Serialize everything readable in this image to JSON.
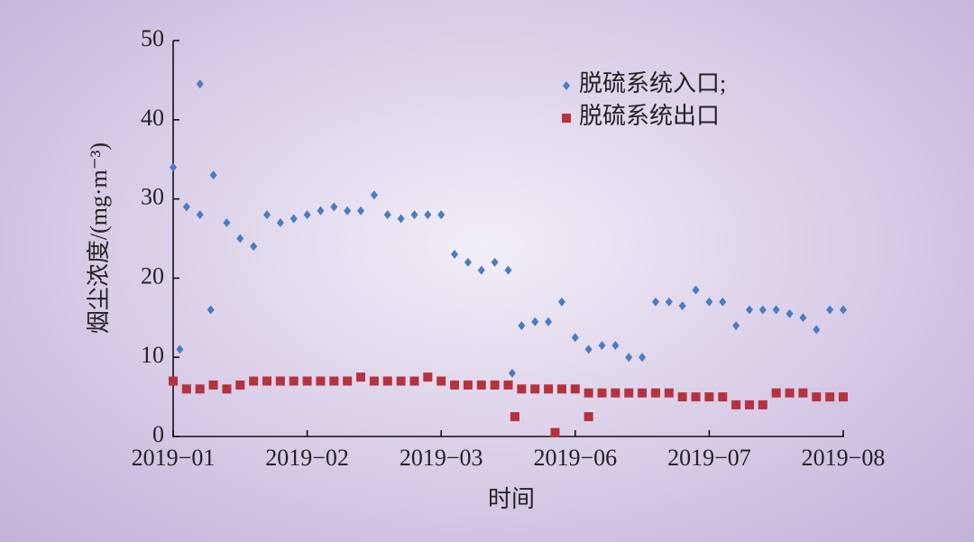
{
  "chart_data": {
    "type": "scatter",
    "xlabel": "时间",
    "ylabel": "烟尘浓度/(mg·m⁻³)",
    "xlim": [
      0,
      5
    ],
    "xticks": [
      {
        "value": 0,
        "label": "2019−01"
      },
      {
        "value": 1,
        "label": "2019−02"
      },
      {
        "value": 2,
        "label": "2019−03"
      },
      {
        "value": 3,
        "label": "2019−06"
      },
      {
        "value": 4,
        "label": "2019−07"
      },
      {
        "value": 5,
        "label": "2019−08"
      }
    ],
    "ylim": [
      0,
      50
    ],
    "yticks": [
      0,
      10,
      20,
      30,
      40,
      50
    ],
    "grid": false,
    "legend": "upper right",
    "series": [
      {
        "name": "脱硫系统入口;",
        "color": "#4a7cc2",
        "marker": "diamond",
        "x": [
          0,
          0.1,
          0.2,
          0.3,
          0.4,
          0.5,
          0.6,
          0.7,
          0.8,
          0.9,
          1.0,
          1.1,
          1.2,
          1.3,
          1.4,
          1.5,
          1.6,
          1.7,
          1.8,
          1.9,
          2.0,
          2.1,
          2.2,
          2.3,
          2.4,
          2.5,
          2.6,
          2.7,
          2.8,
          2.9,
          3.0,
          3.1,
          3.2,
          3.3,
          3.4,
          3.5,
          3.6,
          3.7,
          3.8,
          3.9,
          4.0,
          4.1,
          4.2,
          4.3,
          4.4,
          4.5,
          4.6,
          4.7,
          4.8,
          4.9,
          5.0,
          0.2,
          0.28,
          0.05,
          2.53
        ],
        "values": [
          34,
          29,
          28,
          33,
          27,
          25,
          24,
          28,
          27,
          27.5,
          28,
          28.5,
          29,
          28.5,
          28.5,
          30.5,
          28,
          27.5,
          28,
          28,
          28,
          23,
          22,
          21,
          22,
          21,
          14,
          14.5,
          14.5,
          17,
          12.5,
          11,
          11.5,
          11.5,
          10,
          10,
          17,
          17,
          16.5,
          18.5,
          17,
          17,
          14,
          16,
          16,
          16,
          15.5,
          15,
          13.5,
          16,
          16,
          44.5,
          16,
          11,
          8
        ]
      },
      {
        "name": "脱硫系统出口",
        "color": "#b5323f",
        "marker": "square",
        "x": [
          0,
          0.1,
          0.2,
          0.3,
          0.4,
          0.5,
          0.6,
          0.7,
          0.8,
          0.9,
          1.0,
          1.1,
          1.2,
          1.3,
          1.4,
          1.5,
          1.6,
          1.7,
          1.8,
          1.9,
          2.0,
          2.1,
          2.2,
          2.3,
          2.4,
          2.5,
          2.6,
          2.7,
          2.8,
          2.9,
          3.0,
          3.1,
          3.2,
          3.3,
          3.4,
          3.5,
          3.6,
          3.7,
          3.8,
          3.9,
          4.0,
          4.1,
          4.2,
          4.3,
          4.4,
          4.5,
          4.6,
          4.7,
          4.8,
          4.9,
          5.0,
          2.55,
          2.85,
          3.1
        ],
        "values": [
          7,
          6,
          6,
          6.5,
          6,
          6.5,
          7,
          7,
          7,
          7,
          7,
          7,
          7,
          7,
          7.5,
          7,
          7,
          7,
          7,
          7.5,
          7,
          6.5,
          6.5,
          6.5,
          6.5,
          6.5,
          6,
          6,
          6,
          6,
          6,
          5.5,
          5.5,
          5.5,
          5.5,
          5.5,
          5.5,
          5.5,
          5,
          5,
          5,
          5,
          4,
          4,
          4,
          5.5,
          5.5,
          5.5,
          5,
          5,
          5,
          2.5,
          0.5,
          2.5
        ]
      }
    ]
  }
}
